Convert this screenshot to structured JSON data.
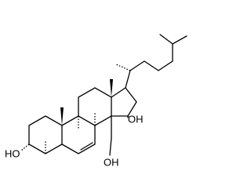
{
  "atoms": [
    {
      "label": "HO"
    },
    {
      "label": "OH"
    },
    {
      "label": "OH"
    }
  ]
}
